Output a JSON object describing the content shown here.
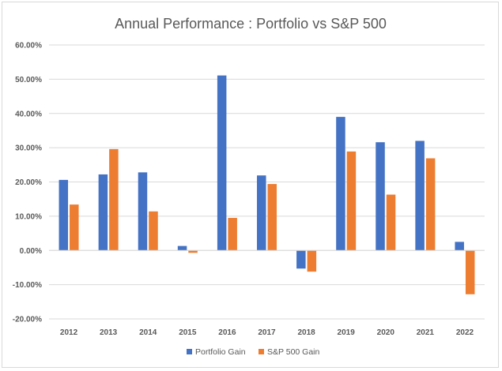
{
  "chart_data": {
    "type": "bar",
    "title": "Annual Performance : Portfolio vs S&P 500",
    "xlabel": "",
    "ylabel": "",
    "categories": [
      "2012",
      "2013",
      "2014",
      "2015",
      "2016",
      "2017",
      "2018",
      "2019",
      "2020",
      "2021",
      "2022"
    ],
    "series": [
      {
        "name": "Portfolio Gain",
        "color": "#4472c4",
        "values": [
          20.6,
          22.2,
          22.8,
          1.3,
          51.1,
          21.9,
          -5.3,
          39.0,
          31.6,
          32.0,
          2.5
        ]
      },
      {
        "name": "S&P 500 Gain",
        "color": "#ed7d31",
        "values": [
          13.4,
          29.6,
          11.4,
          -0.7,
          9.5,
          19.4,
          -6.2,
          28.9,
          16.3,
          26.9,
          -12.8
        ]
      }
    ],
    "ylim": [
      -20,
      60
    ],
    "yticks": [
      -20,
      -10,
      0,
      10,
      20,
      30,
      40,
      50,
      60
    ],
    "ytick_labels": [
      "-20.00%",
      "-10.00%",
      "0.00%",
      "10.00%",
      "20.00%",
      "30.00%",
      "40.00%",
      "50.00%",
      "60.00%"
    ],
    "grid": "horizontal",
    "legend": "bottom"
  }
}
